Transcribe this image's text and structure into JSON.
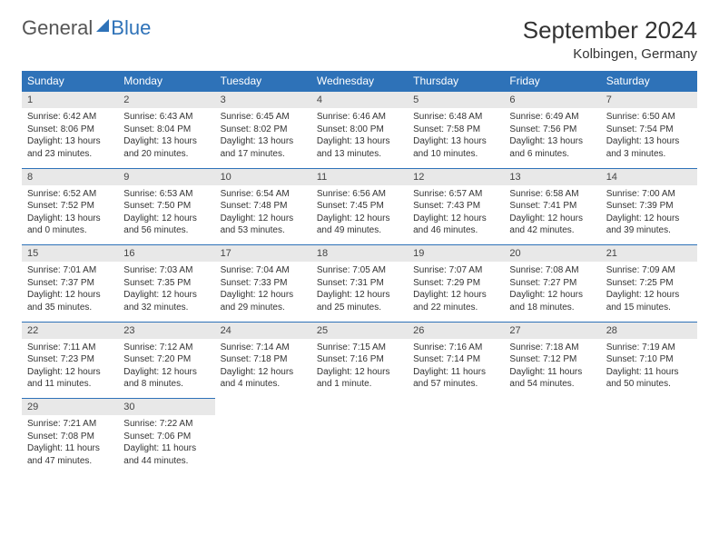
{
  "logo": {
    "general": "General",
    "blue": "Blue"
  },
  "header": {
    "title": "September 2024",
    "location": "Kolbingen, Germany"
  },
  "colors": {
    "accent": "#2e72b8",
    "dayhead_bg": "#2e72b8",
    "daynum_bg": "#e8e8e8"
  },
  "weekdays": [
    "Sunday",
    "Monday",
    "Tuesday",
    "Wednesday",
    "Thursday",
    "Friday",
    "Saturday"
  ],
  "weeks": [
    {
      "nums": [
        "1",
        "2",
        "3",
        "4",
        "5",
        "6",
        "7"
      ],
      "cells": [
        {
          "sunrise": "Sunrise: 6:42 AM",
          "sunset": "Sunset: 8:06 PM",
          "day1": "Daylight: 13 hours",
          "day2": "and 23 minutes."
        },
        {
          "sunrise": "Sunrise: 6:43 AM",
          "sunset": "Sunset: 8:04 PM",
          "day1": "Daylight: 13 hours",
          "day2": "and 20 minutes."
        },
        {
          "sunrise": "Sunrise: 6:45 AM",
          "sunset": "Sunset: 8:02 PM",
          "day1": "Daylight: 13 hours",
          "day2": "and 17 minutes."
        },
        {
          "sunrise": "Sunrise: 6:46 AM",
          "sunset": "Sunset: 8:00 PM",
          "day1": "Daylight: 13 hours",
          "day2": "and 13 minutes."
        },
        {
          "sunrise": "Sunrise: 6:48 AM",
          "sunset": "Sunset: 7:58 PM",
          "day1": "Daylight: 13 hours",
          "day2": "and 10 minutes."
        },
        {
          "sunrise": "Sunrise: 6:49 AM",
          "sunset": "Sunset: 7:56 PM",
          "day1": "Daylight: 13 hours",
          "day2": "and 6 minutes."
        },
        {
          "sunrise": "Sunrise: 6:50 AM",
          "sunset": "Sunset: 7:54 PM",
          "day1": "Daylight: 13 hours",
          "day2": "and 3 minutes."
        }
      ]
    },
    {
      "nums": [
        "8",
        "9",
        "10",
        "11",
        "12",
        "13",
        "14"
      ],
      "cells": [
        {
          "sunrise": "Sunrise: 6:52 AM",
          "sunset": "Sunset: 7:52 PM",
          "day1": "Daylight: 13 hours",
          "day2": "and 0 minutes."
        },
        {
          "sunrise": "Sunrise: 6:53 AM",
          "sunset": "Sunset: 7:50 PM",
          "day1": "Daylight: 12 hours",
          "day2": "and 56 minutes."
        },
        {
          "sunrise": "Sunrise: 6:54 AM",
          "sunset": "Sunset: 7:48 PM",
          "day1": "Daylight: 12 hours",
          "day2": "and 53 minutes."
        },
        {
          "sunrise": "Sunrise: 6:56 AM",
          "sunset": "Sunset: 7:45 PM",
          "day1": "Daylight: 12 hours",
          "day2": "and 49 minutes."
        },
        {
          "sunrise": "Sunrise: 6:57 AM",
          "sunset": "Sunset: 7:43 PM",
          "day1": "Daylight: 12 hours",
          "day2": "and 46 minutes."
        },
        {
          "sunrise": "Sunrise: 6:58 AM",
          "sunset": "Sunset: 7:41 PM",
          "day1": "Daylight: 12 hours",
          "day2": "and 42 minutes."
        },
        {
          "sunrise": "Sunrise: 7:00 AM",
          "sunset": "Sunset: 7:39 PM",
          "day1": "Daylight: 12 hours",
          "day2": "and 39 minutes."
        }
      ]
    },
    {
      "nums": [
        "15",
        "16",
        "17",
        "18",
        "19",
        "20",
        "21"
      ],
      "cells": [
        {
          "sunrise": "Sunrise: 7:01 AM",
          "sunset": "Sunset: 7:37 PM",
          "day1": "Daylight: 12 hours",
          "day2": "and 35 minutes."
        },
        {
          "sunrise": "Sunrise: 7:03 AM",
          "sunset": "Sunset: 7:35 PM",
          "day1": "Daylight: 12 hours",
          "day2": "and 32 minutes."
        },
        {
          "sunrise": "Sunrise: 7:04 AM",
          "sunset": "Sunset: 7:33 PM",
          "day1": "Daylight: 12 hours",
          "day2": "and 29 minutes."
        },
        {
          "sunrise": "Sunrise: 7:05 AM",
          "sunset": "Sunset: 7:31 PM",
          "day1": "Daylight: 12 hours",
          "day2": "and 25 minutes."
        },
        {
          "sunrise": "Sunrise: 7:07 AM",
          "sunset": "Sunset: 7:29 PM",
          "day1": "Daylight: 12 hours",
          "day2": "and 22 minutes."
        },
        {
          "sunrise": "Sunrise: 7:08 AM",
          "sunset": "Sunset: 7:27 PM",
          "day1": "Daylight: 12 hours",
          "day2": "and 18 minutes."
        },
        {
          "sunrise": "Sunrise: 7:09 AM",
          "sunset": "Sunset: 7:25 PM",
          "day1": "Daylight: 12 hours",
          "day2": "and 15 minutes."
        }
      ]
    },
    {
      "nums": [
        "22",
        "23",
        "24",
        "25",
        "26",
        "27",
        "28"
      ],
      "cells": [
        {
          "sunrise": "Sunrise: 7:11 AM",
          "sunset": "Sunset: 7:23 PM",
          "day1": "Daylight: 12 hours",
          "day2": "and 11 minutes."
        },
        {
          "sunrise": "Sunrise: 7:12 AM",
          "sunset": "Sunset: 7:20 PM",
          "day1": "Daylight: 12 hours",
          "day2": "and 8 minutes."
        },
        {
          "sunrise": "Sunrise: 7:14 AM",
          "sunset": "Sunset: 7:18 PM",
          "day1": "Daylight: 12 hours",
          "day2": "and 4 minutes."
        },
        {
          "sunrise": "Sunrise: 7:15 AM",
          "sunset": "Sunset: 7:16 PM",
          "day1": "Daylight: 12 hours",
          "day2": "and 1 minute."
        },
        {
          "sunrise": "Sunrise: 7:16 AM",
          "sunset": "Sunset: 7:14 PM",
          "day1": "Daylight: 11 hours",
          "day2": "and 57 minutes."
        },
        {
          "sunrise": "Sunrise: 7:18 AM",
          "sunset": "Sunset: 7:12 PM",
          "day1": "Daylight: 11 hours",
          "day2": "and 54 minutes."
        },
        {
          "sunrise": "Sunrise: 7:19 AM",
          "sunset": "Sunset: 7:10 PM",
          "day1": "Daylight: 11 hours",
          "day2": "and 50 minutes."
        }
      ]
    },
    {
      "nums": [
        "29",
        "30",
        "",
        "",
        "",
        "",
        ""
      ],
      "cells": [
        {
          "sunrise": "Sunrise: 7:21 AM",
          "sunset": "Sunset: 7:08 PM",
          "day1": "Daylight: 11 hours",
          "day2": "and 47 minutes."
        },
        {
          "sunrise": "Sunrise: 7:22 AM",
          "sunset": "Sunset: 7:06 PM",
          "day1": "Daylight: 11 hours",
          "day2": "and 44 minutes."
        },
        {
          "sunrise": "",
          "sunset": "",
          "day1": "",
          "day2": ""
        },
        {
          "sunrise": "",
          "sunset": "",
          "day1": "",
          "day2": ""
        },
        {
          "sunrise": "",
          "sunset": "",
          "day1": "",
          "day2": ""
        },
        {
          "sunrise": "",
          "sunset": "",
          "day1": "",
          "day2": ""
        },
        {
          "sunrise": "",
          "sunset": "",
          "day1": "",
          "day2": ""
        }
      ]
    }
  ]
}
